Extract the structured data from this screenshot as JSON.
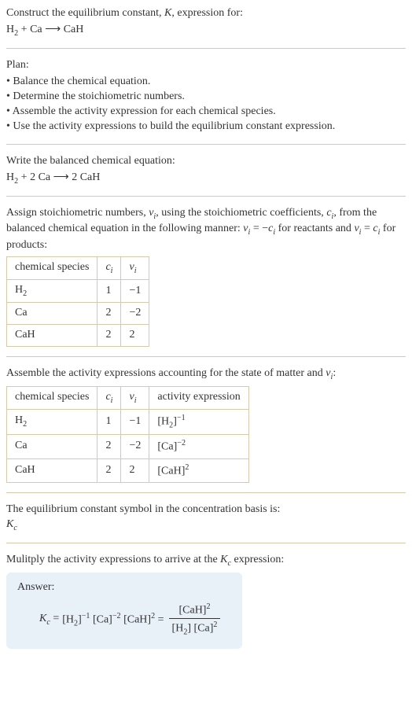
{
  "header": {
    "title_prefix": "Construct the equilibrium constant, ",
    "title_k": "K",
    "title_suffix": ", expression for:",
    "equation_html": "H<span class='sub' style='font-style:normal'>2</span> + Ca <span class='arrow'>⟶</span> CaH"
  },
  "plan": {
    "title": "Plan:",
    "items": [
      "• Balance the chemical equation.",
      "• Determine the stoichiometric numbers.",
      "• Assemble the activity expression for each chemical species.",
      "• Use the activity expressions to build the equilibrium constant expression."
    ]
  },
  "balanced": {
    "title": "Write the balanced chemical equation:",
    "equation_html": "H<span class='sub' style='font-style:normal'>2</span> + 2 Ca <span class='arrow'>⟶</span> 2 CaH"
  },
  "stoich": {
    "intro_html": "Assign stoichiometric numbers, <span class='ital'>ν<span class='sub'>i</span></span>, using the stoichiometric coefficients, <span class='ital'>c<span class='sub'>i</span></span>, from the balanced chemical equation in the following manner: <span class='ital'>ν<span class='sub'>i</span></span> = −<span class='ital'>c<span class='sub'>i</span></span> for reactants and <span class='ital'>ν<span class='sub'>i</span></span> = <span class='ital'>c<span class='sub'>i</span></span> for products:",
    "headers": {
      "species": "chemical species",
      "ci_html": "<span class='ital'>c<span class='sub'>i</span></span>",
      "vi_html": "<span class='ital'>ν<span class='sub'>i</span></span>"
    },
    "rows": [
      {
        "species_html": "H<span class='sub' style='font-style:normal'>2</span>",
        "ci": "1",
        "vi": "−1"
      },
      {
        "species_html": "Ca",
        "ci": "2",
        "vi": "−2"
      },
      {
        "species_html": "CaH",
        "ci": "2",
        "vi": "2"
      }
    ]
  },
  "activity": {
    "intro_html": "Assemble the activity expressions accounting for the state of matter and <span class='ital'>ν<span class='sub'>i</span></span>:",
    "headers": {
      "species": "chemical species",
      "ci_html": "<span class='ital'>c<span class='sub'>i</span></span>",
      "vi_html": "<span class='ital'>ν<span class='sub'>i</span></span>",
      "activity": "activity expression"
    },
    "rows": [
      {
        "species_html": "H<span class='sub' style='font-style:normal'>2</span>",
        "ci": "1",
        "vi": "−1",
        "act_html": "[H<span class='sub' style='font-style:normal'>2</span>]<span class='sup'>−1</span>"
      },
      {
        "species_html": "Ca",
        "ci": "2",
        "vi": "−2",
        "act_html": "[Ca]<span class='sup'>−2</span>"
      },
      {
        "species_html": "CaH",
        "ci": "2",
        "vi": "2",
        "act_html": "[CaH]<span class='sup'>2</span>"
      }
    ]
  },
  "kc_symbol": {
    "line1": "The equilibrium constant symbol in the concentration basis is:",
    "line2_html": "<span class='ital'>K<span class='sub'>c</span></span>"
  },
  "multiply": {
    "intro_html": "Mulitply the activity expressions to arrive at the <span class='ital'>K<span class='sub'>c</span></span> expression:"
  },
  "answer": {
    "title": "Answer:",
    "lhs_html": "<span class='ital'>K<span class='sub'>c</span></span> = ",
    "mid_html": "[H<span class='sub' style='font-style:normal'>2</span>]<span class='sup'>−1</span> [Ca]<span class='sup'>−2</span> [CaH]<span class='sup'>2</span> = ",
    "num_html": "[CaH]<span class='sup'>2</span>",
    "den_html": "[H<span class='sub' style='font-style:normal'>2</span>] [Ca]<span class='sup'>2</span>"
  },
  "colors": {
    "text": "#333333",
    "divider": "#d9c9a8",
    "answer_bg": "#e8f0f8"
  }
}
